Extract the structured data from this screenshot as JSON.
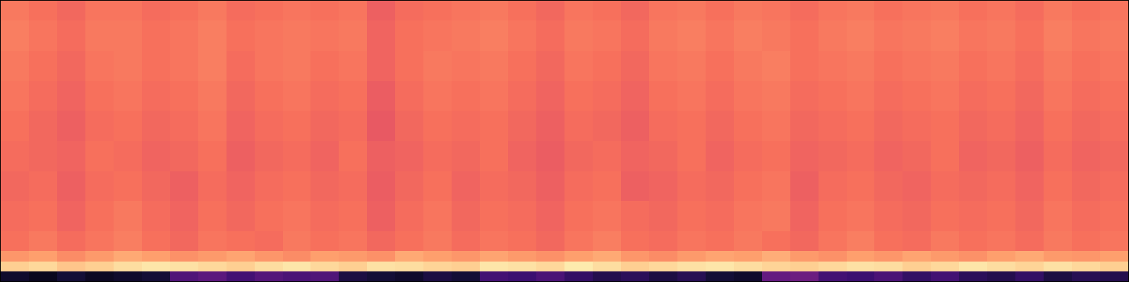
{
  "chart_data": {
    "type": "heatmap",
    "color": "magma",
    "tick_labels": false,
    "xlim": [
      0,
      40
    ],
    "ylim": [
      0,
      28
    ],
    "zlim": [
      0,
      1
    ],
    "x": [
      0,
      1,
      2,
      3,
      4,
      5,
      6,
      7,
      8,
      9,
      10,
      11,
      12,
      13,
      14,
      15,
      16,
      17,
      18,
      19,
      20,
      21,
      22,
      23,
      24,
      25,
      26,
      27,
      28,
      29,
      30,
      31,
      32,
      33,
      34,
      35,
      36,
      37,
      38,
      39,
      40
    ],
    "y": [
      0,
      1,
      2,
      3,
      5,
      8,
      11,
      14,
      17,
      20,
      23,
      26,
      28
    ],
    "z": [
      [
        0.08,
        0.05,
        0.1,
        0.06,
        0.08,
        0.1,
        0.25,
        0.28,
        0.22,
        0.26,
        0.24,
        0.25,
        0.12,
        0.1,
        0.08,
        0.12,
        0.1,
        0.22,
        0.2,
        0.24,
        0.18,
        0.14,
        0.16,
        0.12,
        0.15,
        0.1,
        0.08,
        0.3,
        0.32,
        0.22,
        0.2,
        0.24,
        0.18,
        0.22,
        0.16,
        0.14,
        0.18,
        0.12,
        0.15,
        0.14
      ],
      [
        0.9,
        0.92,
        0.88,
        0.9,
        0.93,
        0.95,
        0.94,
        0.92,
        0.9,
        0.93,
        0.95,
        0.92,
        0.9,
        0.94,
        0.93,
        0.91,
        0.9,
        0.95,
        0.94,
        0.92,
        0.96,
        0.93,
        0.9,
        0.92,
        0.94,
        0.95,
        0.93,
        0.91,
        0.9,
        0.92,
        0.94,
        0.93,
        0.9,
        0.92,
        0.95,
        0.93,
        0.91,
        0.94,
        0.92,
        0.9
      ],
      [
        0.78,
        0.8,
        0.76,
        0.79,
        0.82,
        0.8,
        0.77,
        0.79,
        0.81,
        0.78,
        0.76,
        0.8,
        0.79,
        0.77,
        0.82,
        0.8,
        0.78,
        0.81,
        0.79,
        0.77,
        0.8,
        0.82,
        0.78,
        0.76,
        0.79,
        0.81,
        0.8,
        0.83,
        0.79,
        0.77,
        0.8,
        0.78,
        0.81,
        0.79,
        0.77,
        0.8,
        0.82,
        0.79,
        0.78,
        0.8
      ],
      [
        0.7,
        0.72,
        0.69,
        0.71,
        0.73,
        0.7,
        0.68,
        0.71,
        0.7,
        0.69,
        0.72,
        0.7,
        0.71,
        0.68,
        0.7,
        0.72,
        0.69,
        0.71,
        0.7,
        0.68,
        0.71,
        0.73,
        0.7,
        0.69,
        0.71,
        0.7,
        0.72,
        0.7,
        0.68,
        0.71,
        0.73,
        0.7,
        0.69,
        0.72,
        0.7,
        0.71,
        0.69,
        0.72,
        0.7,
        0.71
      ],
      [
        0.69,
        0.7,
        0.67,
        0.7,
        0.72,
        0.69,
        0.67,
        0.7,
        0.68,
        0.7,
        0.71,
        0.69,
        0.7,
        0.66,
        0.69,
        0.71,
        0.68,
        0.7,
        0.69,
        0.67,
        0.7,
        0.71,
        0.69,
        0.68,
        0.7,
        0.69,
        0.71,
        0.72,
        0.67,
        0.7,
        0.71,
        0.69,
        0.68,
        0.7,
        0.69,
        0.7,
        0.68,
        0.71,
        0.69,
        0.7
      ],
      [
        0.68,
        0.69,
        0.66,
        0.69,
        0.7,
        0.68,
        0.66,
        0.69,
        0.67,
        0.69,
        0.7,
        0.68,
        0.69,
        0.65,
        0.68,
        0.7,
        0.67,
        0.69,
        0.68,
        0.66,
        0.69,
        0.7,
        0.66,
        0.67,
        0.69,
        0.68,
        0.7,
        0.71,
        0.66,
        0.69,
        0.7,
        0.68,
        0.67,
        0.69,
        0.68,
        0.69,
        0.67,
        0.7,
        0.68,
        0.69
      ],
      [
        0.69,
        0.68,
        0.67,
        0.7,
        0.69,
        0.67,
        0.68,
        0.7,
        0.66,
        0.68,
        0.69,
        0.67,
        0.7,
        0.66,
        0.67,
        0.69,
        0.68,
        0.7,
        0.67,
        0.65,
        0.68,
        0.69,
        0.67,
        0.68,
        0.7,
        0.67,
        0.69,
        0.7,
        0.67,
        0.68,
        0.69,
        0.67,
        0.68,
        0.7,
        0.67,
        0.68,
        0.66,
        0.69,
        0.67,
        0.68
      ],
      [
        0.7,
        0.68,
        0.66,
        0.69,
        0.7,
        0.68,
        0.69,
        0.71,
        0.67,
        0.69,
        0.7,
        0.68,
        0.69,
        0.64,
        0.68,
        0.7,
        0.69,
        0.7,
        0.68,
        0.66,
        0.69,
        0.68,
        0.66,
        0.69,
        0.7,
        0.68,
        0.7,
        0.71,
        0.68,
        0.69,
        0.7,
        0.68,
        0.69,
        0.7,
        0.68,
        0.69,
        0.67,
        0.7,
        0.68,
        0.69
      ],
      [
        0.71,
        0.69,
        0.67,
        0.7,
        0.71,
        0.69,
        0.7,
        0.72,
        0.68,
        0.7,
        0.71,
        0.69,
        0.7,
        0.65,
        0.69,
        0.71,
        0.7,
        0.71,
        0.69,
        0.67,
        0.7,
        0.69,
        0.67,
        0.7,
        0.71,
        0.69,
        0.71,
        0.72,
        0.69,
        0.7,
        0.71,
        0.69,
        0.7,
        0.71,
        0.69,
        0.7,
        0.68,
        0.71,
        0.69,
        0.7
      ],
      [
        0.72,
        0.7,
        0.68,
        0.71,
        0.72,
        0.7,
        0.71,
        0.73,
        0.69,
        0.71,
        0.72,
        0.7,
        0.71,
        0.67,
        0.7,
        0.72,
        0.71,
        0.72,
        0.7,
        0.68,
        0.71,
        0.7,
        0.68,
        0.71,
        0.72,
        0.7,
        0.72,
        0.73,
        0.7,
        0.71,
        0.72,
        0.7,
        0.71,
        0.72,
        0.7,
        0.71,
        0.69,
        0.72,
        0.7,
        0.71
      ],
      [
        0.73,
        0.71,
        0.69,
        0.72,
        0.72,
        0.7,
        0.71,
        0.73,
        0.7,
        0.71,
        0.72,
        0.71,
        0.72,
        0.67,
        0.7,
        0.71,
        0.72,
        0.73,
        0.71,
        0.69,
        0.72,
        0.71,
        0.69,
        0.72,
        0.73,
        0.71,
        0.73,
        0.72,
        0.7,
        0.72,
        0.73,
        0.71,
        0.72,
        0.73,
        0.71,
        0.72,
        0.7,
        0.73,
        0.71,
        0.72
      ],
      [
        0.72,
        0.7,
        0.68,
        0.71,
        0.71,
        0.69,
        0.7,
        0.72,
        0.69,
        0.7,
        0.71,
        0.7,
        0.71,
        0.66,
        0.69,
        0.7,
        0.71,
        0.72,
        0.7,
        0.68,
        0.71,
        0.7,
        0.68,
        0.71,
        0.72,
        0.7,
        0.72,
        0.71,
        0.69,
        0.71,
        0.72,
        0.7,
        0.71,
        0.72,
        0.7,
        0.71,
        0.69,
        0.72,
        0.7,
        0.71
      ]
    ]
  }
}
